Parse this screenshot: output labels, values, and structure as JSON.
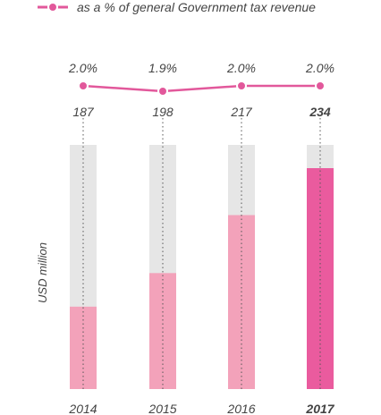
{
  "legend": {
    "line_label": "as a % of general Government tax revenue"
  },
  "colors": {
    "line": "#e2589b",
    "bar_track": "#e6e6e6",
    "bar_fill": "#f3a2ba",
    "bar_highlight": "#ea5b9e",
    "text": "#444444",
    "dotted": "#555555"
  },
  "chart_data": {
    "type": "bar",
    "categories": [
      "2014",
      "2015",
      "2016",
      "2017"
    ],
    "ylabel": "USD million",
    "highlight_category": "2017",
    "series": [
      {
        "type": "bar",
        "values": [
          187,
          198,
          217,
          234
        ]
      },
      {
        "type": "line",
        "name": "as a % of general Government tax revenue",
        "values": [
          2.0,
          1.9,
          2.0,
          2.0
        ],
        "value_labels": [
          "2.0%",
          "1.9%",
          "2.0%",
          "2.0%"
        ]
      }
    ]
  }
}
